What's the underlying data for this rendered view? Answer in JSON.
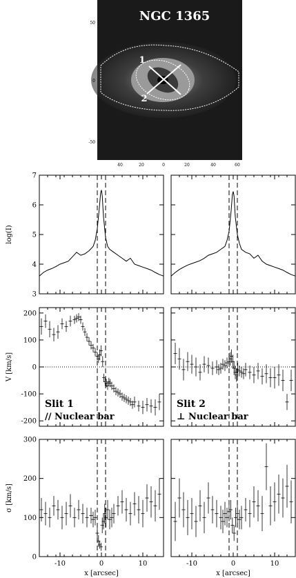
{
  "image_panel": {
    "title": "NGC 1365",
    "slit_labels": [
      "1",
      "2"
    ],
    "y_ticks": [
      "50",
      "0",
      "-50"
    ],
    "x_ticks": [
      "40",
      "20",
      "0",
      "20",
      "40",
      "60"
    ]
  },
  "chart_data": [
    {
      "type": "line",
      "id": "log_intensity",
      "ylabel": "log(I)",
      "xlim": [
        -15,
        15
      ],
      "ylim": [
        3,
        7
      ],
      "yticks": [
        3,
        4,
        5,
        6,
        7
      ],
      "xticks": [
        -10,
        0,
        10
      ],
      "vlines": [
        -1,
        1
      ],
      "series": [
        {
          "x": [
            -15,
            -14,
            -13,
            -12,
            -11,
            -10,
            -9,
            -8,
            -7,
            -6,
            -5,
            -4,
            -3,
            -2,
            -1.5,
            -1,
            -0.5,
            -0.2,
            0,
            0.2,
            0.5,
            1,
            1.5,
            2,
            3,
            4,
            5,
            6,
            7,
            8,
            9,
            10,
            11,
            12,
            13,
            14,
            15
          ],
          "y": [
            3.6,
            3.72,
            3.8,
            3.85,
            3.92,
            4.0,
            4.05,
            4.1,
            4.25,
            4.4,
            4.3,
            4.35,
            4.45,
            4.6,
            4.8,
            5.2,
            5.9,
            6.4,
            6.5,
            6.3,
            5.6,
            4.9,
            4.6,
            4.5,
            4.4,
            4.3,
            4.2,
            4.1,
            4.2,
            4.0,
            3.95,
            3.9,
            3.85,
            3.8,
            3.72,
            3.65,
            3.6
          ]
        },
        {
          "x": [
            -15,
            -14,
            -13,
            -12,
            -11,
            -10,
            -9,
            -8,
            -7,
            -6,
            -5,
            -4,
            -3,
            -2,
            -1.5,
            -1,
            -0.5,
            -0.2,
            0,
            0.2,
            0.5,
            1,
            1.5,
            2,
            3,
            4,
            5,
            6,
            7,
            8,
            9,
            10,
            11,
            12,
            13,
            14,
            15
          ],
          "y": [
            3.6,
            3.72,
            3.82,
            3.9,
            3.97,
            4.02,
            4.07,
            4.12,
            4.2,
            4.3,
            4.35,
            4.4,
            4.5,
            4.6,
            4.8,
            5.1,
            5.8,
            6.35,
            6.45,
            6.3,
            5.6,
            5.0,
            4.7,
            4.5,
            4.4,
            4.35,
            4.2,
            4.3,
            4.1,
            4.0,
            3.95,
            3.9,
            3.85,
            3.8,
            3.72,
            3.65,
            3.6
          ]
        }
      ]
    },
    {
      "type": "scatter",
      "id": "velocity",
      "ylabel": "V  [km/s]",
      "xlim": [
        -15,
        15
      ],
      "ylim": [
        -220,
        220
      ],
      "yticks": [
        -200,
        -100,
        0,
        100,
        200
      ],
      "xticks": [
        -10,
        0,
        10
      ],
      "vlines": [
        -1,
        1
      ],
      "hline": 0,
      "panels": [
        {
          "label": "Slit 1",
          "sublabel": "// Nuclear bar",
          "x": [
            -14.5,
            -13.5,
            -12.5,
            -11.5,
            -10.5,
            -9.5,
            -8.5,
            -7.5,
            -6.5,
            -6,
            -5.5,
            -5,
            -4.5,
            -4,
            -3.5,
            -3,
            -2.5,
            -2,
            -1.5,
            -1,
            -0.7,
            -0.4,
            -0.1,
            0.3,
            0.6,
            0.9,
            1.2,
            1.5,
            1.8,
            2.1,
            2.5,
            3,
            3.5,
            4,
            4.5,
            5,
            5.5,
            6,
            6.5,
            7,
            7.5,
            8,
            9,
            10,
            11,
            12,
            13,
            14
          ],
          "y": [
            150,
            170,
            140,
            120,
            130,
            160,
            150,
            170,
            175,
            180,
            185,
            175,
            150,
            130,
            110,
            95,
            80,
            70,
            55,
            40,
            30,
            45,
            60,
            20,
            -40,
            -55,
            -60,
            -70,
            -55,
            -60,
            -70,
            -80,
            -90,
            -95,
            -100,
            -110,
            -115,
            -120,
            -125,
            -130,
            -140,
            -130,
            -145,
            -150,
            -140,
            -145,
            -150,
            -130
          ],
          "err": [
            30,
            25,
            30,
            25,
            25,
            20,
            20,
            20,
            15,
            15,
            15,
            15,
            15,
            15,
            15,
            15,
            15,
            15,
            15,
            15,
            15,
            20,
            20,
            20,
            15,
            15,
            15,
            15,
            15,
            15,
            15,
            15,
            15,
            15,
            15,
            15,
            15,
            15,
            15,
            15,
            15,
            20,
            20,
            25,
            25,
            25,
            30,
            30
          ]
        },
        {
          "label": "Slit 2",
          "sublabel": "⊥ Nuclear bar",
          "x": [
            -14,
            -13,
            -12,
            -11,
            -10,
            -9,
            -8,
            -7,
            -6,
            -5,
            -4,
            -3.5,
            -3,
            -2.5,
            -2,
            -1.5,
            -1,
            -0.7,
            -0.4,
            -0.1,
            0.2,
            0.5,
            0.8,
            1.1,
            1.5,
            2,
            2.5,
            3,
            4,
            5,
            6,
            7,
            8,
            9,
            10,
            11,
            12,
            13,
            14
          ],
          "y": [
            50,
            30,
            -10,
            20,
            10,
            0,
            -20,
            10,
            5,
            -5,
            0,
            -10,
            -5,
            10,
            5,
            15,
            20,
            30,
            40,
            20,
            -5,
            -20,
            -30,
            -10,
            -15,
            -20,
            -25,
            -10,
            -20,
            -30,
            -15,
            -35,
            -25,
            -40,
            -40,
            -30,
            -50,
            -130,
            -50
          ],
          "err": [
            40,
            40,
            40,
            35,
            35,
            35,
            30,
            30,
            30,
            25,
            25,
            20,
            20,
            20,
            20,
            20,
            20,
            25,
            25,
            25,
            25,
            25,
            25,
            25,
            20,
            20,
            20,
            25,
            25,
            30,
            30,
            30,
            35,
            35,
            40,
            40,
            40,
            30,
            40
          ]
        }
      ]
    },
    {
      "type": "scatter",
      "id": "dispersion",
      "ylabel": "σ  [km/s]",
      "xlabel": "x  [arcsec]",
      "xlim": [
        -15,
        15
      ],
      "ylim": [
        0,
        300
      ],
      "yticks": [
        0,
        100,
        200,
        300
      ],
      "xticks": [
        -10,
        0,
        10
      ],
      "vlines": [
        -1,
        1
      ],
      "panels": [
        {
          "x": [
            -14.5,
            -13.5,
            -12.5,
            -11.5,
            -10.5,
            -9.5,
            -8.5,
            -7.5,
            -6.5,
            -5.5,
            -4.5,
            -3.5,
            -2.5,
            -2,
            -1.5,
            -1,
            -0.7,
            -0.4,
            -0.1,
            0.2,
            0.5,
            0.8,
            1.1,
            1.5,
            2,
            2.5,
            3,
            4,
            5,
            6,
            7,
            8,
            9,
            10,
            11,
            12,
            13,
            14
          ],
          "y": [
            120,
            110,
            100,
            130,
            120,
            100,
            110,
            130,
            100,
            120,
            110,
            100,
            105,
            95,
            100,
            60,
            40,
            30,
            25,
            80,
            90,
            110,
            100,
            120,
            95,
            100,
            110,
            130,
            140,
            120,
            110,
            135,
            120,
            110,
            150,
            140,
            130,
            160
          ],
          "err": [
            30,
            30,
            25,
            25,
            25,
            30,
            30,
            30,
            25,
            25,
            25,
            25,
            20,
            20,
            20,
            15,
            15,
            10,
            10,
            20,
            20,
            25,
            25,
            25,
            25,
            25,
            25,
            25,
            30,
            30,
            30,
            30,
            35,
            35,
            35,
            40,
            40,
            40
          ]
        },
        {
          "x": [
            -14,
            -13,
            -12,
            -11,
            -10,
            -9,
            -8,
            -7,
            -6,
            -5,
            -4,
            -3,
            -2.5,
            -2,
            -1.5,
            -1,
            -0.6,
            -0.2,
            0.2,
            0.6,
            1,
            1.5,
            2,
            3,
            4,
            5,
            6,
            7,
            8,
            9,
            10,
            11,
            12,
            13,
            14
          ],
          "y": [
            90,
            150,
            120,
            100,
            110,
            90,
            130,
            100,
            150,
            120,
            110,
            100,
            90,
            110,
            100,
            115,
            120,
            80,
            60,
            100,
            110,
            95,
            100,
            120,
            110,
            140,
            130,
            110,
            230,
            130,
            140,
            160,
            150,
            180,
            140
          ],
          "err": [
            50,
            50,
            45,
            45,
            40,
            40,
            40,
            40,
            40,
            35,
            35,
            30,
            30,
            30,
            25,
            25,
            25,
            20,
            20,
            25,
            25,
            25,
            30,
            30,
            35,
            40,
            40,
            45,
            60,
            50,
            50,
            50,
            50,
            55,
            55
          ]
        }
      ]
    }
  ]
}
